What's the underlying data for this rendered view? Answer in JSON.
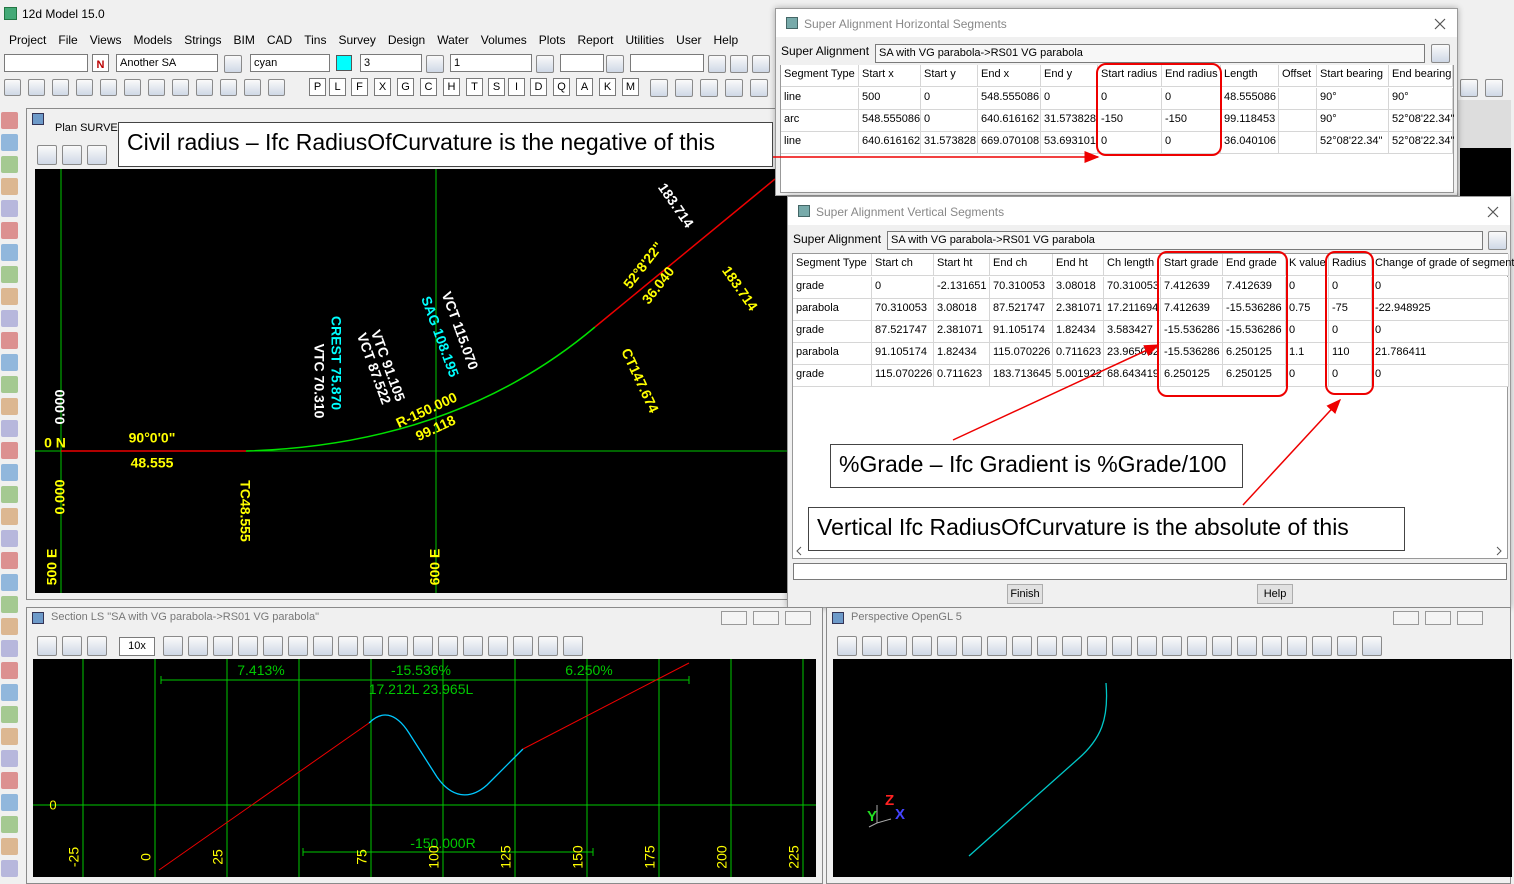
{
  "app": {
    "title": "12d Model  15.0",
    "menu": [
      "Project",
      "File",
      "Views",
      "Models",
      "Strings",
      "BIM",
      "CAD",
      "Tins",
      "Survey",
      "Design",
      "Water",
      "Volumes",
      "Plots",
      "Report",
      "Utilities",
      "User",
      "Help"
    ],
    "toolbar": {
      "flag": "N",
      "fields": [
        "Another SA",
        "cyan",
        "3",
        "1"
      ],
      "letters": [
        "P",
        "L",
        "F",
        "X",
        "G",
        "C",
        "H",
        "T",
        "S",
        "I",
        "D",
        "Q",
        "A",
        "K",
        "M"
      ]
    }
  },
  "plan": {
    "title": "Plan SURVEY",
    "labels": [
      "0.000",
      "0.000",
      "0  N",
      "500 E",
      "600 E",
      "90°0'0\"",
      "48.555",
      "TC48.555",
      "CREST 75.870",
      "VTC 70.310",
      "VTC 91.105",
      "VCT 87.522",
      "SAG 108.195",
      "VCT 115.070",
      "R-150.000",
      "99.118",
      "52°8'22\"",
      "36.040",
      "CT147.674",
      "183.714",
      "183.714"
    ]
  },
  "horizontal": {
    "title": "Super Alignment Horizontal Segments",
    "field_label": "Super Alignment",
    "field_value": "SA  with VG parabola->RS01 VG parabola",
    "columns": [
      "Segment Type",
      "Start x",
      "Start y",
      "End x",
      "End y",
      "Start radius",
      "End radius",
      "Length",
      "Offset",
      "Start bearing",
      "End bearing"
    ],
    "rows": [
      [
        "line",
        "500",
        "0",
        "548.555086",
        "0",
        "0",
        "0",
        "48.555086",
        null,
        "90°",
        "90°"
      ],
      [
        "arc",
        "548.555086",
        "0",
        "640.616162",
        "31.573828",
        "-150",
        "-150",
        "99.118453",
        null,
        "90°",
        "52°08'22.34\""
      ],
      [
        "line",
        "640.616162",
        "31.573828",
        "669.070108",
        "53.693101",
        "0",
        "0",
        "36.040106",
        null,
        "52°08'22.34\"",
        "52°08'22.34\""
      ]
    ]
  },
  "vertical": {
    "title": "Super Alignment Vertical Segments",
    "field_label": "Super Alignment",
    "field_value": "SA  with VG parabola->RS01 VG parabola",
    "columns": [
      "Segment Type",
      "Start ch",
      "Start ht",
      "End ch",
      "End ht",
      "Ch length",
      "Start grade",
      "End grade",
      "K value",
      "Radius",
      "Change of grade of segment"
    ],
    "rows": [
      [
        "grade",
        "0",
        "-2.131651",
        "70.310053",
        "3.08018",
        "70.310053",
        "7.412639",
        "7.412639",
        "0",
        "0",
        "0"
      ],
      [
        "parabola",
        "70.310053",
        "3.08018",
        "87.521747",
        "2.381071",
        "17.211694",
        "7.412639",
        "-15.536286",
        "0.75",
        "-75",
        "-22.948925"
      ],
      [
        "grade",
        "87.521747",
        "2.381071",
        "91.105174",
        "1.82434",
        "3.583427",
        "-15.536286",
        "-15.536286",
        "0",
        "0",
        "0"
      ],
      [
        "parabola",
        "91.105174",
        "1.82434",
        "115.070226",
        "0.711623",
        "23.965052",
        "-15.536286",
        "6.250125",
        "1.1",
        "110",
        "21.786411"
      ],
      [
        "grade",
        "115.070226",
        "0.711623",
        "183.713645",
        "5.001922",
        "68.643419",
        "6.250125",
        "6.250125",
        "0",
        "0",
        "0"
      ]
    ],
    "buttons": [
      "Finish",
      "Help"
    ]
  },
  "section": {
    "title": "Section LS \"SA  with VG parabola->RS01 VG parabola\"",
    "zoom": "10x",
    "grades": [
      "7.413%",
      "-15.536%",
      "6.250%"
    ],
    "lengths": "17.212L 23.965L",
    "radius": "-150.000R",
    "y_label": "0",
    "x_labels": [
      "-25",
      "0",
      "25",
      "75",
      "100",
      "125",
      "150",
      "175",
      "200",
      "225"
    ]
  },
  "perspective": {
    "title": "Perspective OpenGL 5",
    "axes": [
      "Z",
      "Y",
      "X"
    ]
  },
  "annotations": [
    "Civil radius – Ifc RadiusOfCurvature is the negative of this",
    "%Grade – Ifc Gradient is %Grade/100",
    "Vertical Ifc RadiusOfCurvature is the absolute of this"
  ]
}
